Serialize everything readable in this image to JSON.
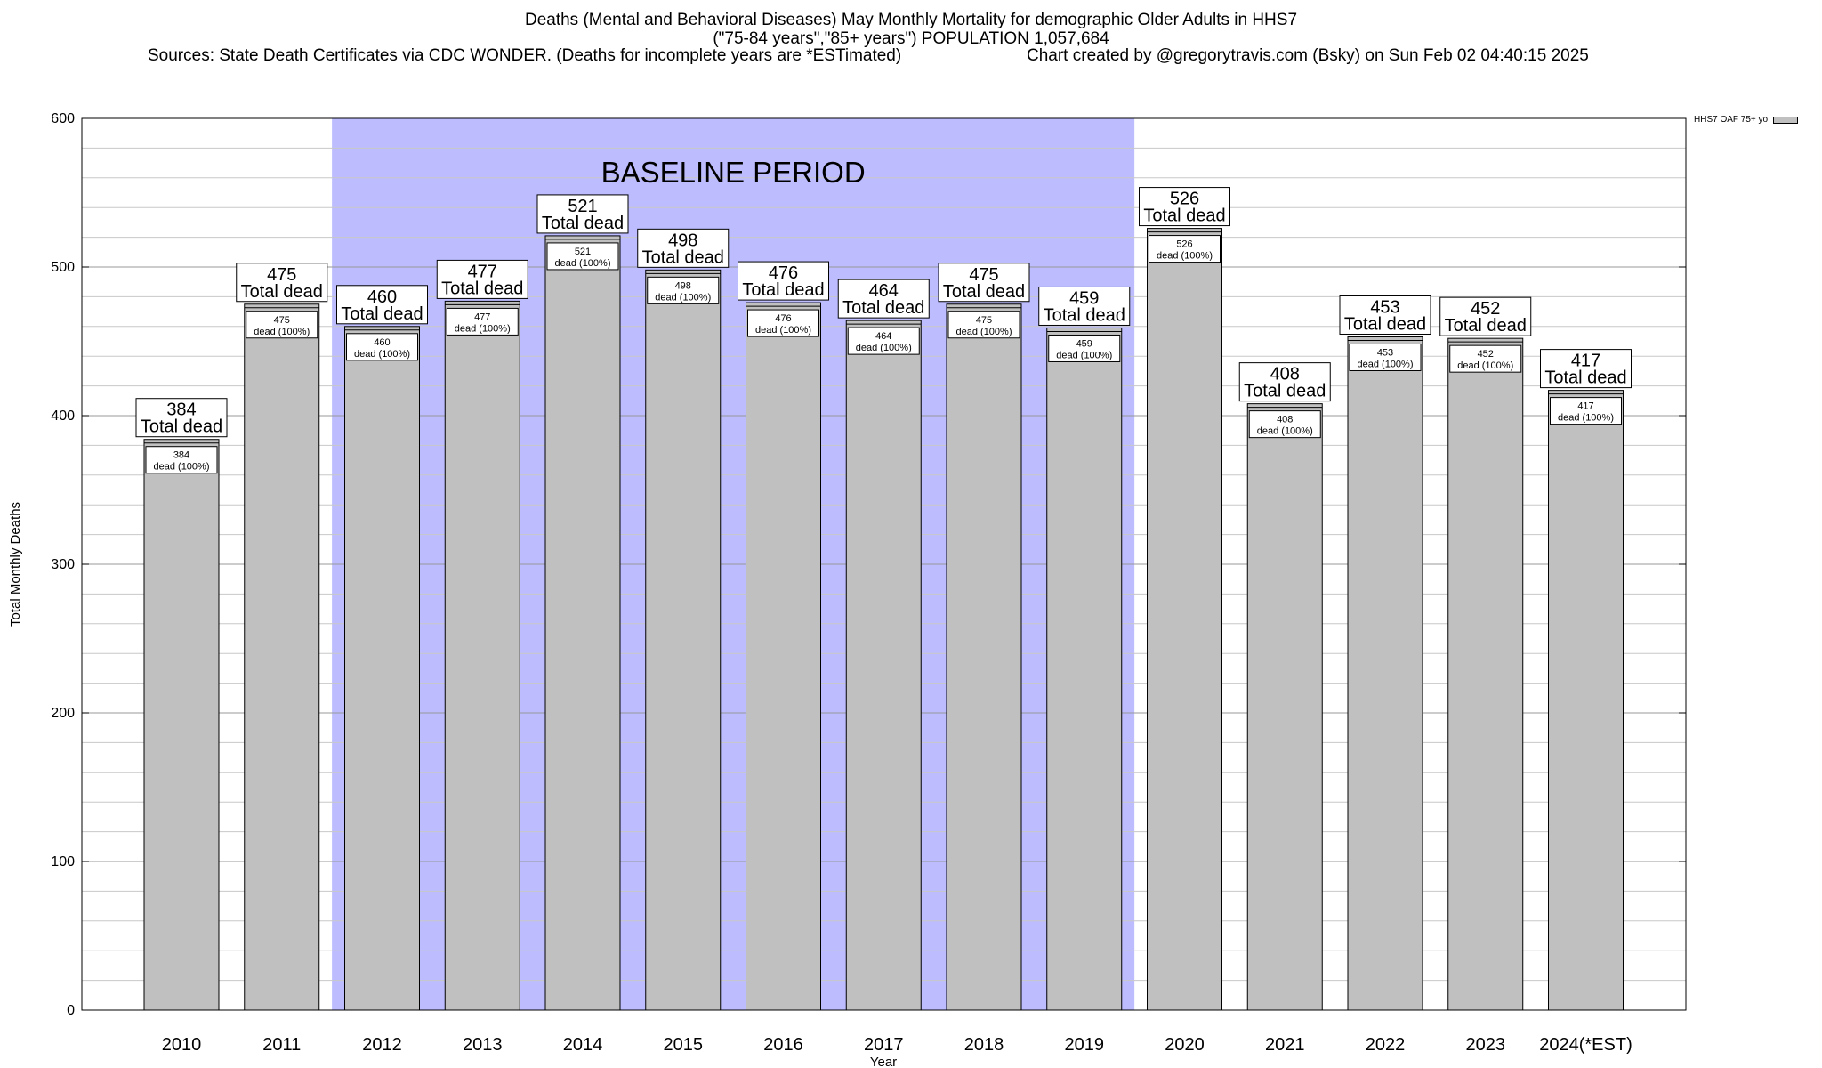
{
  "header": {
    "title_line1": "Deaths (Mental and Behavioral Diseases) May Monthly Mortality for demographic Older Adults in HHS7",
    "title_line2": "(\"75-84 years\",\"85+ years\") POPULATION 1,057,684",
    "sources": "Sources: State Death Certificates via CDC WONDER. (Deaths for incomplete years are *ESTimated)",
    "credit": "Chart created by @gregorytravis.com (Bsky) on Sun Feb 02 04:40:15 2025"
  },
  "chart_data": {
    "type": "bar",
    "categories": [
      "2010",
      "2011",
      "2012",
      "2013",
      "2014",
      "2015",
      "2016",
      "2017",
      "2018",
      "2019",
      "2020",
      "2021",
      "2022",
      "2023",
      "2024(*EST)"
    ],
    "series": [
      {
        "name": "HHS7 OAF 75+ yo",
        "values": [
          384,
          475,
          460,
          477,
          521,
          498,
          476,
          464,
          475,
          459,
          526,
          408,
          453,
          452,
          417
        ],
        "color": "#c0c0c0"
      }
    ],
    "ylim": [
      0,
      600
    ],
    "yticks": [
      0,
      100,
      200,
      300,
      400,
      500,
      600
    ],
    "ylabel": "Total Monthly Deaths",
    "xlabel": "Year",
    "grid": true,
    "legend_position": "top-right",
    "top_label_suffix": "Total dead",
    "inner_label_suffix": "dead (100%)",
    "baseline": {
      "label": "BASELINE PERIOD",
      "start": "2012",
      "end": "2019",
      "color": "#bcbcff"
    }
  }
}
